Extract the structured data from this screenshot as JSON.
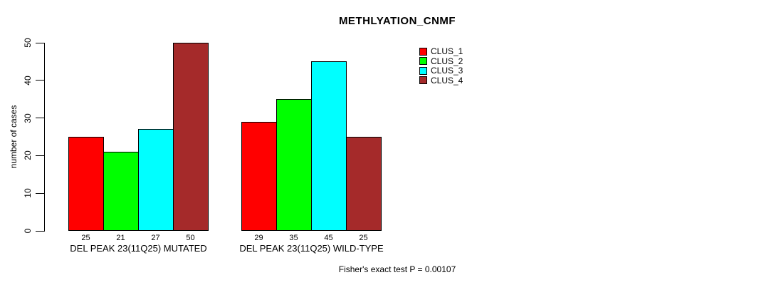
{
  "chart_data": {
    "type": "bar",
    "title": "METHLYATION_CNMF",
    "ylabel": "number of cases",
    "ylim": [
      0,
      50
    ],
    "yticks": [
      0,
      10,
      20,
      30,
      40,
      50
    ],
    "grid": false,
    "legend_position": "top-right",
    "background_color": "#ffffff",
    "text_color": "#000000",
    "bar_border_color": "#000000",
    "categories": [
      "DEL PEAK 23(11Q25) MUTATED",
      "DEL PEAK 23(11Q25) WILD-TYPE"
    ],
    "series": [
      {
        "name": "CLUS_1",
        "color": "#ff0000",
        "values": [
          25,
          29
        ]
      },
      {
        "name": "CLUS_2",
        "color": "#00ff00",
        "values": [
          21,
          35
        ]
      },
      {
        "name": "CLUS_3",
        "color": "#00ffff",
        "values": [
          27,
          45
        ]
      },
      {
        "name": "CLUS_4",
        "color": "#a52a2a",
        "values": [
          50,
          25
        ]
      }
    ],
    "bar_value_labels": {
      "DEL PEAK 23(11Q25) MUTATED": [
        25,
        21,
        27,
        50
      ],
      "DEL PEAK 23(11Q25) WILD-TYPE": [
        29,
        35,
        45,
        25
      ]
    },
    "annotation": "Fisher's exact test P = 0.00107"
  }
}
